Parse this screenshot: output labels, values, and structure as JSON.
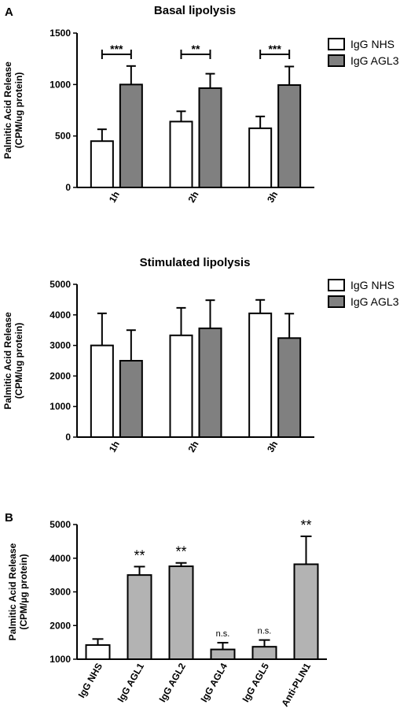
{
  "panel_labels": [
    "A",
    "B"
  ],
  "chart_data": [
    {
      "type": "bar",
      "title": "Basal lipolysis",
      "ylabel_lines": [
        "Palmitic Acid Release",
        "(CPM/ug protein)"
      ],
      "categories": [
        "1h",
        "2h",
        "3h"
      ],
      "ylim": [
        0,
        1500
      ],
      "yticks": [
        "0",
        "500",
        "1000",
        "1500"
      ],
      "series": [
        {
          "name": "IgG NHS",
          "values": [
            450,
            640,
            575
          ],
          "errors": [
            115,
            100,
            115
          ],
          "color": "#ffffff"
        },
        {
          "name": "IgG AGL3",
          "values": [
            1000,
            965,
            995
          ],
          "errors": [
            180,
            140,
            180
          ],
          "color": "#808080"
        }
      ],
      "significance": [
        "***",
        "**",
        "***"
      ],
      "legend_position": "right"
    },
    {
      "type": "bar",
      "title": "Stimulated lipolysis",
      "ylabel_lines": [
        "Palmitic Acid Release",
        "(CPM/ug protein)"
      ],
      "categories": [
        "1h",
        "2h",
        "3h"
      ],
      "ylim": [
        0,
        5000
      ],
      "yticks": [
        "0",
        "1000",
        "2000",
        "3000",
        "4000",
        "5000"
      ],
      "series": [
        {
          "name": "IgG NHS",
          "values": [
            3000,
            3330,
            4050
          ],
          "errors": [
            1050,
            900,
            440
          ],
          "color": "#ffffff"
        },
        {
          "name": "IgG AGL3",
          "values": [
            2500,
            3560,
            3240
          ],
          "errors": [
            1000,
            920,
            800
          ],
          "color": "#808080"
        }
      ],
      "legend_position": "right"
    },
    {
      "type": "bar",
      "title": "",
      "ylabel_lines": [
        "Palmitic Acid Release",
        "(CPM/µg protein)"
      ],
      "categories": [
        "IgG NHS",
        "IgG AGL1",
        "IgG AGL2",
        "IgG AGL4",
        "IgG AGL5",
        "Anti-PLIN1"
      ],
      "ylim": [
        1000,
        5000
      ],
      "yticks": [
        "1000",
        "2000",
        "3000",
        "4000",
        "5000"
      ],
      "values": [
        1420,
        3500,
        3760,
        1290,
        1370,
        3820
      ],
      "errors": [
        180,
        250,
        100,
        200,
        200,
        830
      ],
      "colors": [
        "#ffffff",
        "#b3b3b3",
        "#b3b3b3",
        "#b3b3b3",
        "#b3b3b3",
        "#b3b3b3"
      ],
      "annotations": [
        "",
        "**",
        "**",
        "n.s.",
        "n.s.",
        "**"
      ]
    }
  ]
}
